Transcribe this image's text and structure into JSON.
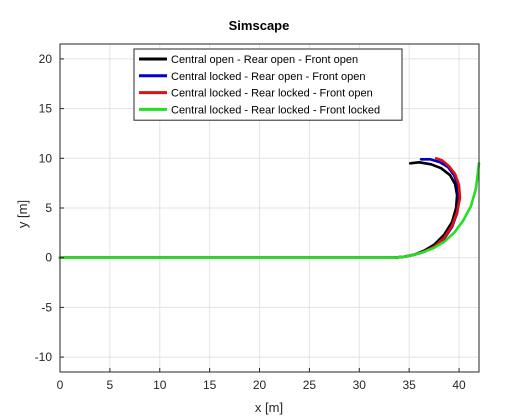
{
  "chart_data": {
    "type": "line",
    "title": "Simscape",
    "xlabel": "x [m]",
    "ylabel": "y [m]",
    "xlim": [
      0,
      42
    ],
    "ylim": [
      -11.5,
      21.5
    ],
    "xticks": [
      0,
      5,
      10,
      15,
      20,
      25,
      30,
      35,
      40
    ],
    "yticks": [
      -10,
      -5,
      0,
      5,
      10,
      15,
      20
    ],
    "grid": true,
    "legend_position": "top-center",
    "series": [
      {
        "name": "Central open - Rear open - Front open",
        "color": "#000000",
        "x": [
          0,
          10,
          20,
          30,
          33.5,
          34.5,
          35.5,
          36.5,
          37.5,
          38.5,
          39.3,
          39.7,
          39.8,
          39.6,
          39.1,
          38.2,
          37.2,
          36.0,
          35.1
        ],
        "y": [
          0,
          0,
          0,
          0,
          0,
          0.1,
          0.3,
          0.7,
          1.3,
          2.3,
          3.6,
          5.0,
          6.3,
          7.4,
          8.3,
          9.0,
          9.4,
          9.6,
          9.5
        ]
      },
      {
        "name": "Central locked - Rear open - Front open",
        "color": "#0000c8",
        "x": [
          0,
          10,
          20,
          30,
          33.5,
          34.5,
          35.5,
          36.5,
          37.5,
          38.5,
          39.3,
          39.8,
          40.0,
          39.9,
          39.5,
          38.9,
          38.1,
          37.1,
          36.2
        ],
        "y": [
          0,
          0,
          0,
          0,
          0,
          0.1,
          0.3,
          0.6,
          1.1,
          1.9,
          3.1,
          4.5,
          5.9,
          7.2,
          8.3,
          9.1,
          9.6,
          9.9,
          9.9
        ]
      },
      {
        "name": "Central locked - Rear locked - Front open",
        "color": "#e01010",
        "x": [
          0,
          10,
          20,
          30,
          33.5,
          34.5,
          35.5,
          36.5,
          37.5,
          38.5,
          39.3,
          39.8,
          40.1,
          40.0,
          39.6,
          39.0,
          38.3,
          37.7
        ],
        "y": [
          0,
          0,
          0,
          0,
          0,
          0.1,
          0.3,
          0.6,
          1.1,
          2.0,
          3.2,
          4.6,
          6.0,
          7.3,
          8.4,
          9.2,
          9.8,
          10.0
        ]
      },
      {
        "name": "Central locked - Rear locked - Front locked",
        "color": "#22e022",
        "x": [
          0,
          10,
          20,
          30,
          33.5,
          34.5,
          35.5,
          36.5,
          37.5,
          38.5,
          39.5,
          40.4,
          41.2,
          41.7,
          42.0
        ],
        "y": [
          0,
          0,
          0,
          0,
          0,
          0.1,
          0.3,
          0.6,
          1.0,
          1.6,
          2.5,
          3.7,
          5.2,
          7.0,
          9.5
        ]
      }
    ]
  }
}
